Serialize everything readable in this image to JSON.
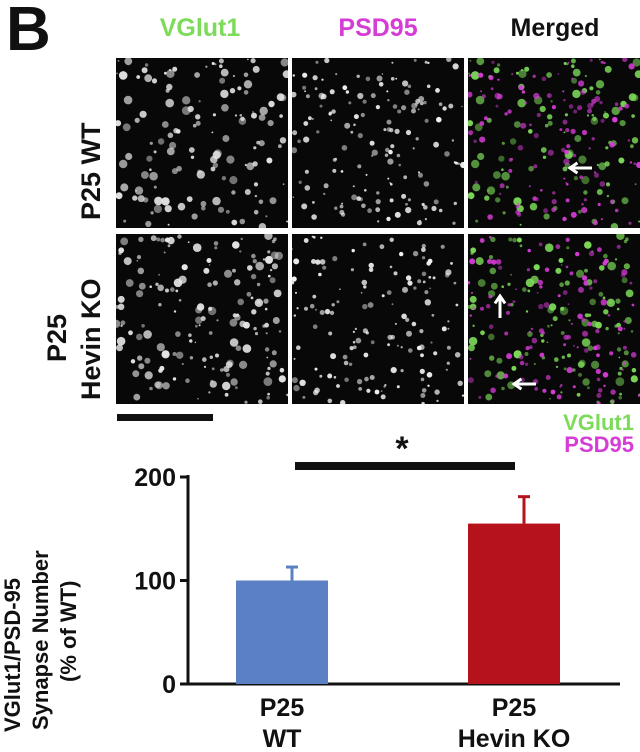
{
  "panel": {
    "letter": "B"
  },
  "columns": [
    {
      "label": "VGlut1",
      "color": "#7ddb5a"
    },
    {
      "label": "PSD95",
      "color": "#d63cd6"
    },
    {
      "label": "Merged",
      "color": "#111111"
    }
  ],
  "rows": [
    {
      "label_lines": [
        "P25 WT"
      ]
    },
    {
      "label_lines": [
        "P25",
        "Hevin KO"
      ]
    }
  ],
  "legend": [
    {
      "label": "VGlut1",
      "color": "#7ddb5a"
    },
    {
      "label": "PSD95",
      "color": "#d63cd6"
    }
  ],
  "chart_data": {
    "type": "bar",
    "categories": [
      [
        "P25",
        "WT"
      ],
      [
        "P25",
        "Hevin KO"
      ]
    ],
    "values": [
      100,
      155
    ],
    "errors": [
      13,
      26
    ],
    "colors": [
      "#5b80c4",
      "#b5121b"
    ],
    "ylabel_lines": [
      "VGlut1/PSD-95",
      "Synapse Number",
      "(% of WT)"
    ],
    "ylim": [
      0,
      200
    ],
    "yticks": [
      0,
      100,
      200
    ],
    "significance": "*",
    "grid": false
  }
}
